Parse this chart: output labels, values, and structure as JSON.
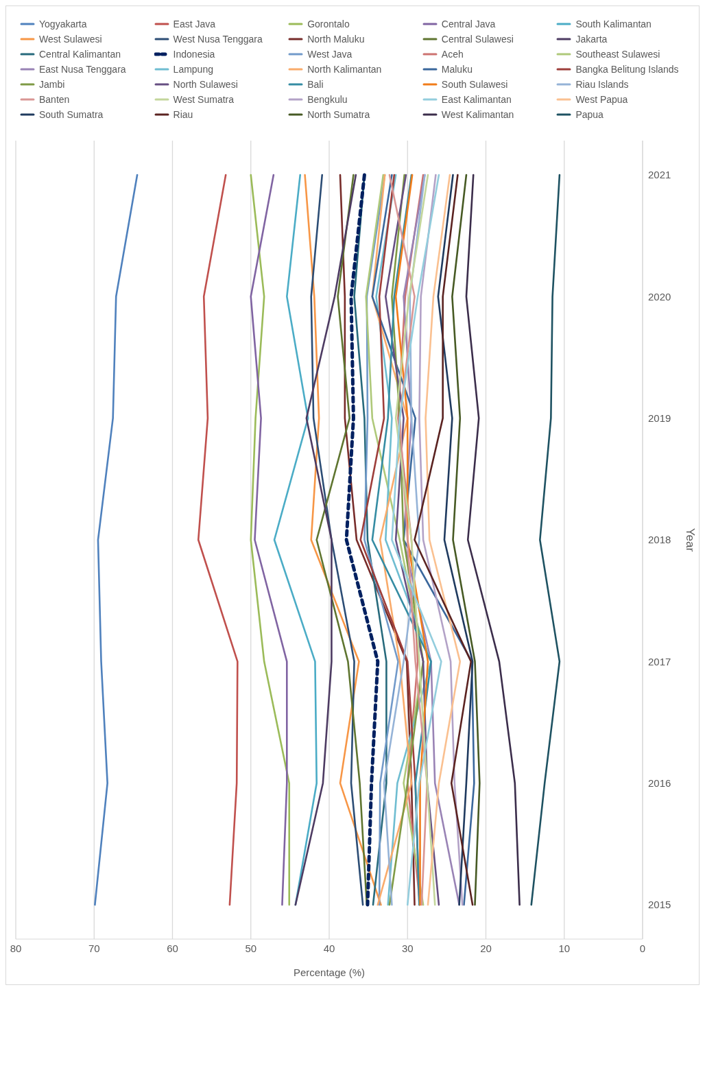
{
  "chart_data": {
    "type": "line",
    "orientation": "horizontal",
    "xlabel": "Percentage (%)",
    "ylabel": "Year",
    "categories": [
      "2021",
      "2020",
      "2019",
      "2018",
      "2017",
      "2016",
      "2015"
    ],
    "xlim": [
      80,
      0
    ],
    "xticks": [
      80,
      70,
      60,
      50,
      40,
      30,
      20,
      10,
      0
    ],
    "grid": "x",
    "legend": "top",
    "marker": "none",
    "series": [
      {
        "name": "Yogyakarta",
        "color": "#4f81bd",
        "values": [
          64.5,
          67.2,
          67.6,
          69.5,
          69.1,
          68.3,
          69.9
        ]
      },
      {
        "name": "East Java",
        "color": "#c0504d",
        "values": [
          53.2,
          56.0,
          55.5,
          56.7,
          51.7,
          51.8,
          52.7
        ]
      },
      {
        "name": "Gorontalo",
        "color": "#9bbb59",
        "values": [
          50.0,
          48.3,
          49.4,
          50.0,
          48.3,
          45.1,
          45.1
        ]
      },
      {
        "name": "Central Java",
        "color": "#8064a2",
        "values": [
          47.1,
          50.0,
          48.7,
          49.5,
          45.4,
          45.4,
          46.0
        ]
      },
      {
        "name": "South Kalimantan",
        "color": "#4bacc6",
        "values": [
          43.7,
          45.4,
          42.7,
          47.0,
          41.8,
          41.6,
          44.3
        ]
      },
      {
        "name": "West Sulawesi",
        "color": "#f79646",
        "values": [
          43.1,
          41.9,
          41.3,
          42.3,
          36.2,
          38.6,
          33.4
        ]
      },
      {
        "name": "West Nusa Tenggara",
        "color": "#2c4d75",
        "values": [
          40.9,
          42.3,
          42.0,
          39.7,
          36.8,
          37.2,
          35.7
        ]
      },
      {
        "name": "North Maluku",
        "color": "#772c2a",
        "values": [
          38.6,
          38.0,
          38.0,
          36.5,
          30.1,
          29.5,
          29.1
        ]
      },
      {
        "name": "Central Sulawesi",
        "color": "#5f7530",
        "values": [
          36.9,
          38.9,
          37.4,
          41.6,
          37.6,
          36.1,
          35.2
        ]
      },
      {
        "name": "Jakarta",
        "color": "#4d3b62",
        "values": [
          36.6,
          39.3,
          42.9,
          39.7,
          39.7,
          40.8,
          44.3
        ]
      },
      {
        "name": "Central Kalimantan",
        "color": "#276a7c",
        "values": [
          35.5,
          36.8,
          35.5,
          35.1,
          32.7,
          32.7,
          34.4
        ]
      },
      {
        "name": "Indonesia",
        "color": "#002060",
        "line_style": "dashed",
        "values": [
          35.5,
          37.2,
          36.9,
          37.8,
          33.8,
          34.6,
          35.1
        ]
      },
      {
        "name": "West Java",
        "color": "#729aca",
        "values": [
          32.9,
          35.2,
          35.1,
          35.5,
          31.2,
          33.5,
          33.6
        ]
      },
      {
        "name": "Aceh",
        "color": "#cd7371",
        "values": [
          28.0,
          30.3,
          31.2,
          29.5,
          28.7,
          30.0,
          28.4
        ]
      },
      {
        "name": "Southeast Sulawesi",
        "color": "#afc97a",
        "values": [
          33.1,
          35.3,
          34.5,
          31.0,
          28.0,
          30.5,
          28.0
        ]
      },
      {
        "name": "East Nusa Tenggara",
        "color": "#9983b5",
        "values": [
          27.8,
          30.5,
          29.5,
          30.5,
          27.0,
          26.5,
          23.4
        ]
      },
      {
        "name": "Lampung",
        "color": "#6fbdd1",
        "values": [
          31.5,
          34.0,
          32.0,
          32.8,
          27.0,
          31.3,
          32.5
        ]
      },
      {
        "name": "North Kalimantan",
        "color": "#f9ab6b",
        "values": [
          32.9,
          34.5,
          30.0,
          33.5,
          31.0,
          29.5,
          33.8
        ]
      },
      {
        "name": "Maluku",
        "color": "#3a679c",
        "values": [
          32.0,
          34.5,
          29.0,
          30.5,
          21.8,
          21.5,
          22.8
        ]
      },
      {
        "name": "Bangka Belitung Islands",
        "color": "#9e3e3b",
        "values": [
          31.7,
          33.6,
          33.0,
          36.0,
          30.0,
          29.0,
          28.5
        ]
      },
      {
        "name": "Jambi",
        "color": "#7f9a45",
        "values": [
          30.4,
          32.0,
          31.0,
          30.5,
          28.0,
          30.0,
          32.3
        ]
      },
      {
        "name": "North Sulawesi",
        "color": "#664f82",
        "values": [
          30.2,
          32.8,
          30.5,
          31.5,
          28.0,
          27.5,
          26.0
        ]
      },
      {
        "name": "Bali",
        "color": "#358ca3",
        "values": [
          29.5,
          31.7,
          32.5,
          34.5,
          27.0,
          29.0,
          28.5
        ]
      },
      {
        "name": "South Sulawesi",
        "color": "#f17c1a",
        "values": [
          29.4,
          31.5,
          30.0,
          30.0,
          27.4,
          28.4,
          28.4
        ]
      },
      {
        "name": "Riau Islands",
        "color": "#95b3d7",
        "values": [
          27.8,
          29.7,
          29.5,
          28.5,
          30.5,
          33.0,
          32.0
        ]
      },
      {
        "name": "Banten",
        "color": "#d99694",
        "values": [
          32.3,
          29.1,
          31.0,
          30.0,
          29.0,
          27.5,
          28.2
        ]
      },
      {
        "name": "West Sumatra",
        "color": "#c3d69b",
        "values": [
          27.4,
          29.8,
          31.5,
          29.5,
          28.5,
          27.5,
          26.5
        ]
      },
      {
        "name": "Bengkulu",
        "color": "#b3a2c7",
        "values": [
          26.4,
          28.3,
          28.5,
          28.0,
          24.5,
          24.0,
          23.0
        ]
      },
      {
        "name": "East Kalimantan",
        "color": "#93cddd",
        "values": [
          26.0,
          28.7,
          31.0,
          32.0,
          25.7,
          28.5,
          30.0
        ]
      },
      {
        "name": "West Papua",
        "color": "#fac090",
        "values": [
          24.6,
          26.7,
          27.7,
          27.2,
          23.3,
          26.0,
          27.4
        ]
      },
      {
        "name": "South Sumatra",
        "color": "#1f3a5f",
        "values": [
          24.2,
          26.1,
          24.3,
          25.3,
          21.7,
          22.5,
          23.4
        ]
      },
      {
        "name": "Riau",
        "color": "#5b2321",
        "values": [
          23.6,
          25.5,
          25.5,
          29.1,
          21.9,
          24.4,
          21.7
        ]
      },
      {
        "name": "North Sumatra",
        "color": "#475a24",
        "values": [
          22.5,
          24.3,
          23.3,
          24.2,
          21.4,
          20.8,
          21.4
        ]
      },
      {
        "name": "West Kalimantan",
        "color": "#3b2d4b",
        "values": [
          21.6,
          22.5,
          20.9,
          22.3,
          18.3,
          16.3,
          15.7
        ]
      },
      {
        "name": "Papua",
        "color": "#1e5262",
        "values": [
          10.6,
          11.5,
          11.7,
          13.1,
          10.6,
          12.5,
          14.2
        ]
      }
    ]
  }
}
